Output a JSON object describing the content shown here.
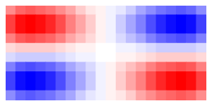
{
  "chart_data": {
    "type": "heatmap",
    "tick_labels": false,
    "grid": false,
    "cells": [
      [
        0.45,
        0.57,
        0.6,
        0.57,
        0.51,
        0.42,
        0.31,
        0.2,
        0.11,
        0.03,
        -0.03,
        -0.11,
        -0.2,
        -0.31,
        -0.42,
        -0.51,
        -0.57,
        -0.6,
        -0.57,
        -0.45
      ],
      [
        0.71,
        0.9,
        0.95,
        0.9,
        0.81,
        0.67,
        0.49,
        0.32,
        0.17,
        0.05,
        -0.05,
        -0.17,
        -0.32,
        -0.49,
        -0.67,
        -0.81,
        -0.9,
        -0.95,
        -0.9,
        -0.71
      ],
      [
        0.71,
        0.9,
        0.95,
        0.9,
        0.81,
        0.67,
        0.49,
        0.32,
        0.17,
        0.05,
        -0.05,
        -0.17,
        -0.32,
        -0.49,
        -0.67,
        -0.81,
        -0.9,
        -0.95,
        -0.9,
        -0.71
      ],
      [
        0.49,
        0.62,
        0.65,
        0.62,
        0.55,
        0.46,
        0.34,
        0.22,
        0.12,
        0.03,
        -0.03,
        -0.12,
        -0.22,
        -0.34,
        -0.46,
        -0.55,
        -0.62,
        -0.65,
        -0.62,
        -0.49
      ],
      [
        0.15,
        0.19,
        0.2,
        0.19,
        0.17,
        0.14,
        0.1,
        0.07,
        0.04,
        0.01,
        -0.01,
        -0.04,
        -0.07,
        -0.1,
        -0.14,
        -0.17,
        -0.19,
        -0.2,
        -0.19,
        -0.15
      ],
      [
        -0.15,
        -0.19,
        -0.2,
        -0.19,
        -0.17,
        -0.14,
        -0.1,
        -0.07,
        -0.04,
        -0.01,
        0.01,
        0.04,
        0.07,
        0.1,
        0.14,
        0.17,
        0.19,
        0.2,
        0.19,
        0.15
      ],
      [
        -0.49,
        -0.62,
        -0.65,
        -0.62,
        -0.55,
        -0.46,
        -0.34,
        -0.22,
        -0.12,
        -0.03,
        0.03,
        0.12,
        0.22,
        0.34,
        0.46,
        0.55,
        0.62,
        0.65,
        0.62,
        0.49
      ],
      [
        -0.71,
        -0.9,
        -0.95,
        -0.9,
        -0.81,
        -0.67,
        -0.49,
        -0.32,
        -0.17,
        -0.05,
        0.05,
        0.17,
        0.32,
        0.49,
        0.67,
        0.81,
        0.9,
        0.95,
        0.9,
        0.71
      ],
      [
        -0.71,
        -0.9,
        -0.95,
        -0.9,
        -0.81,
        -0.67,
        -0.49,
        -0.32,
        -0.17,
        -0.05,
        0.05,
        0.17,
        0.32,
        0.49,
        0.67,
        0.81,
        0.9,
        0.95,
        0.9,
        0.71
      ],
      [
        -0.45,
        -0.57,
        -0.6,
        -0.57,
        -0.51,
        -0.42,
        -0.31,
        -0.2,
        -0.11,
        -0.03,
        0.03,
        0.11,
        0.2,
        0.31,
        0.42,
        0.51,
        0.57,
        0.6,
        0.57,
        0.45
      ]
    ]
  }
}
